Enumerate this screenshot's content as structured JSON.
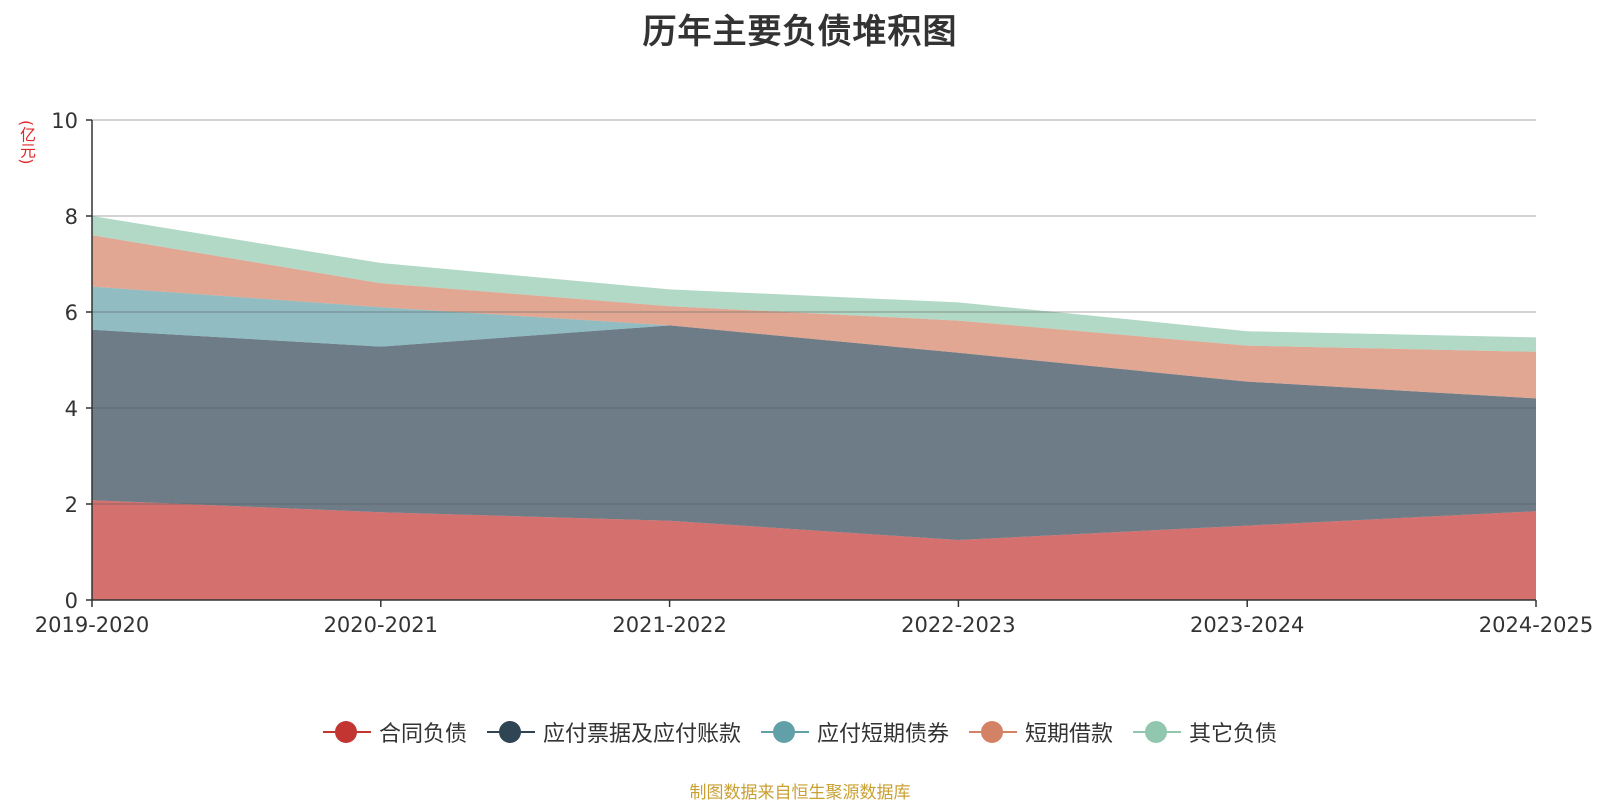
{
  "chart_data": {
    "type": "area",
    "stacked": true,
    "title": "历年主要负债堆积图",
    "unit": "(亿元)",
    "categories": [
      "2019-2020",
      "2020-2021",
      "2021-2022",
      "2022-2023",
      "2023-2024",
      "2024-2025"
    ],
    "ylim": [
      0,
      10
    ],
    "yticks": [
      "0",
      "2",
      "4",
      "6",
      "8",
      "10"
    ],
    "grid": true,
    "legend_position": "bottom",
    "series": [
      {
        "name": "合同负债",
        "color": "#c23531",
        "values": [
          2.08,
          1.83,
          1.65,
          1.25,
          1.55,
          1.85
        ]
      },
      {
        "name": "应付票据及应付账款",
        "color": "#2f4554",
        "values": [
          3.55,
          3.45,
          4.07,
          3.9,
          3.0,
          2.35
        ]
      },
      {
        "name": "应付短期债券",
        "color": "#61a0a8",
        "values": [
          0.9,
          0.82,
          0.0,
          0.0,
          0.0,
          0.0
        ]
      },
      {
        "name": "短期借款",
        "color": "#d48265",
        "values": [
          1.07,
          0.5,
          0.4,
          0.67,
          0.75,
          0.97
        ]
      },
      {
        "name": "其它负债",
        "color": "#91c7ae",
        "values": [
          0.4,
          0.42,
          0.35,
          0.38,
          0.3,
          0.3
        ]
      }
    ],
    "source": "制图数据来自恒生聚源数据库"
  }
}
